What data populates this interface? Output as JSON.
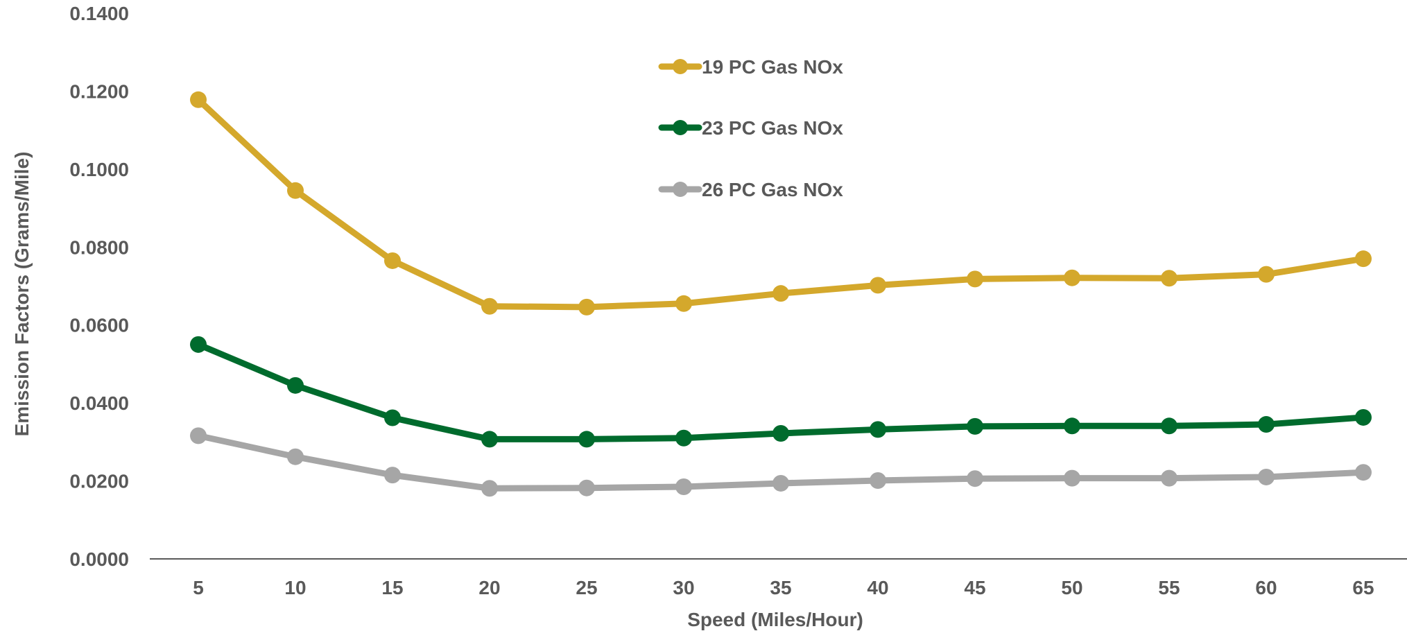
{
  "chart_data": {
    "type": "line",
    "title": "",
    "xlabel": "Speed (Miles/Hour)",
    "ylabel": "Emission Factors (Grams/Mile)",
    "categories": [
      "5",
      "10",
      "15",
      "20",
      "25",
      "30",
      "35",
      "40",
      "45",
      "50",
      "55",
      "60",
      "65"
    ],
    "y_tick_labels": [
      "0.0000",
      "0.0200",
      "0.0400",
      "0.0600",
      "0.0800",
      "0.1000",
      "0.1200",
      "0.1400"
    ],
    "ylim": [
      0,
      0.14
    ],
    "grid": false,
    "legend_position": "top-center",
    "series": [
      {
        "name": "19 PC Gas NOx",
        "color": "#D4A82C",
        "values": [
          0.1178,
          0.0945,
          0.0765,
          0.0648,
          0.0646,
          0.0655,
          0.0681,
          0.0702,
          0.0718,
          0.0721,
          0.072,
          0.073,
          0.077
        ]
      },
      {
        "name": "23 PC Gas NOx",
        "color": "#006B2D",
        "values": [
          0.055,
          0.0445,
          0.0362,
          0.0307,
          0.0307,
          0.031,
          0.0322,
          0.0332,
          0.034,
          0.0341,
          0.0341,
          0.0345,
          0.0363
        ]
      },
      {
        "name": "26 PC Gas NOx",
        "color": "#A6A6A6",
        "values": [
          0.0316,
          0.0262,
          0.0215,
          0.0181,
          0.0182,
          0.0185,
          0.0194,
          0.0201,
          0.0206,
          0.0207,
          0.0207,
          0.021,
          0.0222
        ]
      }
    ]
  }
}
